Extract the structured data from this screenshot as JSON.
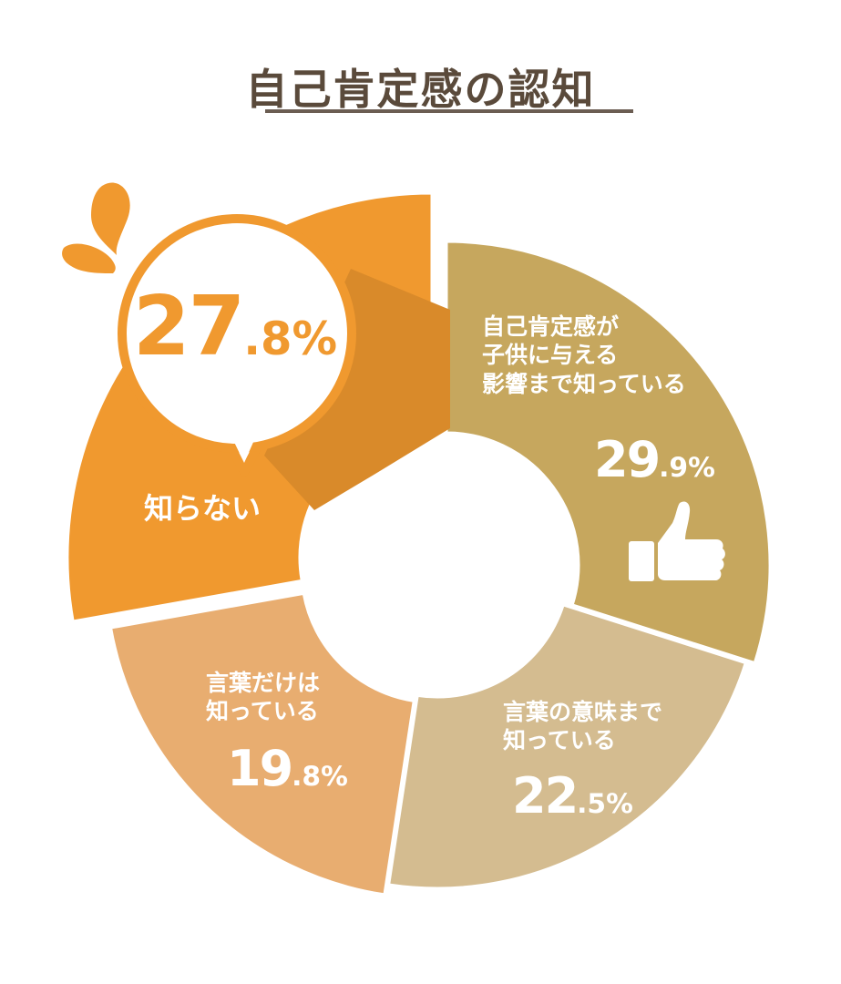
{
  "chart_data": {
    "type": "pie",
    "title": "自己肯定感の認知",
    "slices": [
      {
        "label": "自己肯定感が子供に与える影響まで知っている",
        "lines": [
          "自己肯定感が",
          "子供に与える",
          "影響まで知っている"
        ],
        "value_main": "29",
        "value_dec": ".9%",
        "value": 29.9,
        "color": "#c6a75e"
      },
      {
        "label": "言葉の意味まで知っている",
        "lines": [
          "言葉の意味まで",
          "知っている"
        ],
        "value_main": "22",
        "value_dec": ".5%",
        "value": 22.5,
        "color": "#d4bc90"
      },
      {
        "label": "言葉だけは知っている",
        "lines": [
          "言葉だけは",
          "知っている"
        ],
        "value_main": "19",
        "value_dec": ".8%",
        "value": 19.8,
        "color": "#e8ad70"
      },
      {
        "label": "知らない",
        "lines": [
          "知らない"
        ],
        "value_main": "27",
        "value_dec": ".8%",
        "value": 27.8,
        "color": "#f0992f"
      }
    ]
  },
  "icons": {
    "thumbs_up": "thumbs-up-icon",
    "splash": "splash-icon"
  },
  "colors": {
    "title": "#5a4a3b",
    "bubble_border": "#f0992f",
    "bubble_text": "#f0992f",
    "shadow": "#d98a2a"
  }
}
